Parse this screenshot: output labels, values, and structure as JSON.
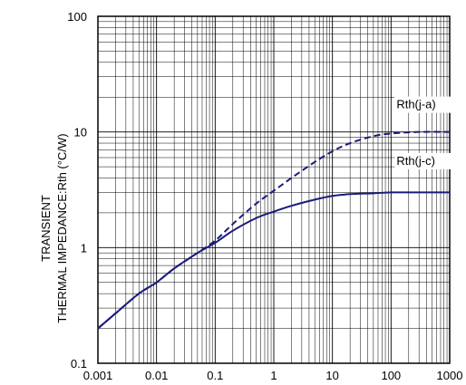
{
  "chart_data": {
    "type": "line",
    "xscale": "log",
    "yscale": "log",
    "xlim": [
      0.001,
      1000
    ],
    "ylim": [
      0.1,
      100
    ],
    "grid": true,
    "xticks": [
      "0.001",
      "0.01",
      "0.1",
      "1",
      "10",
      "100",
      "1000"
    ],
    "yticks": [
      "0.1",
      "1",
      "10",
      "100"
    ],
    "ylabel_line1": "TRANSIENT",
    "ylabel_line2": "THERMAL IMPEDANCE:Rth (°C/W)",
    "line_color": "#1a1a7a",
    "series": [
      {
        "name": "Rth(j-c)",
        "style": "solid",
        "points": [
          [
            0.001,
            0.2
          ],
          [
            0.002,
            0.27
          ],
          [
            0.005,
            0.4
          ],
          [
            0.01,
            0.5
          ],
          [
            0.02,
            0.66
          ],
          [
            0.05,
            0.9
          ],
          [
            0.1,
            1.1
          ],
          [
            0.2,
            1.4
          ],
          [
            0.5,
            1.8
          ],
          [
            1,
            2.05
          ],
          [
            2,
            2.3
          ],
          [
            5,
            2.6
          ],
          [
            10,
            2.8
          ],
          [
            20,
            2.9
          ],
          [
            50,
            2.95
          ],
          [
            100,
            3.0
          ],
          [
            300,
            3.0
          ],
          [
            1000,
            3.0
          ]
        ]
      },
      {
        "name": "Rth(j-a)",
        "style": "dashed",
        "points": [
          [
            0.001,
            0.2
          ],
          [
            0.002,
            0.27
          ],
          [
            0.005,
            0.4
          ],
          [
            0.01,
            0.5
          ],
          [
            0.02,
            0.66
          ],
          [
            0.05,
            0.9
          ],
          [
            0.1,
            1.15
          ],
          [
            0.2,
            1.6
          ],
          [
            0.5,
            2.4
          ],
          [
            1,
            3.1
          ],
          [
            2,
            4.0
          ],
          [
            5,
            5.5
          ],
          [
            10,
            6.8
          ],
          [
            20,
            8.0
          ],
          [
            50,
            9.2
          ],
          [
            100,
            9.7
          ],
          [
            300,
            10.0
          ],
          [
            1000,
            10.0
          ]
        ]
      }
    ]
  }
}
